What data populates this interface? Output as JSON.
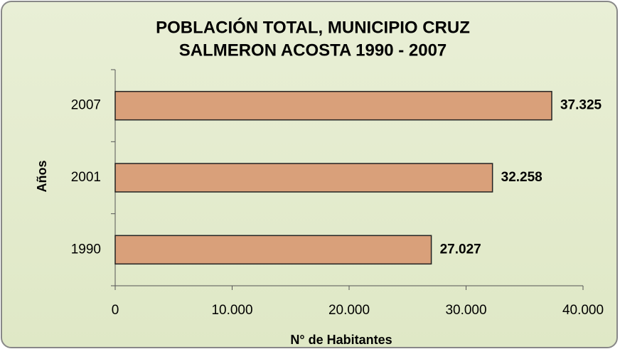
{
  "chart_data": {
    "type": "bar",
    "orientation": "horizontal",
    "title": [
      "POBLACIÓN TOTAL, MUNICIPIO CRUZ",
      "SALMERON ACOSTA 1990 - 2007"
    ],
    "categories": [
      "2007",
      "2001",
      "1990"
    ],
    "values": [
      37325,
      32258,
      27027
    ],
    "value_labels": [
      "37.325",
      "32.258",
      "27.027"
    ],
    "color": "#d9a07a",
    "xlim": [
      0,
      40000
    ],
    "xticks": [
      0,
      {
        "value": 10000,
        "label": "10.000"
      },
      {
        "value": 20000,
        "label": "20.000"
      },
      {
        "value": 30000,
        "label": "30.000"
      },
      {
        "value": 40000,
        "label": "40.000"
      }
    ],
    "xlabel": "N° de Habitantes",
    "ylabel": "Años",
    "grid": false
  }
}
